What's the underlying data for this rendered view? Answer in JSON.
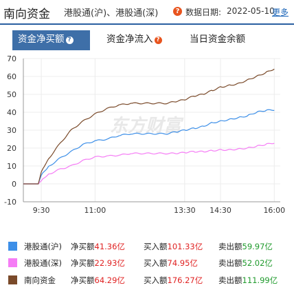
{
  "header": {
    "title": "南向资金",
    "markets": "港股通(沪)、港股通(深)",
    "date_label": "数据日期:",
    "date": "2022-05-10",
    "more": "更多",
    "help_icon": "?"
  },
  "tabs": [
    {
      "label": "资金净买额",
      "active": true
    },
    {
      "label": "资金净流入",
      "active": false
    },
    {
      "label": "当日资金余额",
      "active": false
    }
  ],
  "colors": {
    "accent": "#3e6fa8",
    "sh": "#3d8fe8",
    "sz": "#f57cf5",
    "total": "#7a4a2a"
  },
  "chart_data": {
    "type": "line",
    "x_ticks": [
      "9:30",
      "11:00",
      "13:30",
      "14:30",
      "16:00"
    ],
    "ylim": [
      -10,
      70
    ],
    "y_ticks": [
      -10,
      0,
      10,
      20,
      30,
      40,
      50,
      60,
      70
    ],
    "grid": true,
    "series": [
      {
        "name": "港股通(沪)",
        "points": [
          [
            "9:00",
            0
          ],
          [
            "9:25",
            0
          ],
          [
            "9:30",
            5
          ],
          [
            "9:40",
            9
          ],
          [
            "10:00",
            14
          ],
          [
            "10:20",
            18
          ],
          [
            "10:40",
            22
          ],
          [
            "11:00",
            24
          ],
          [
            "11:20",
            25
          ],
          [
            "11:40",
            27
          ],
          [
            "12:00",
            28
          ],
          [
            "13:00",
            28
          ],
          [
            "13:15",
            29
          ],
          [
            "13:30",
            30
          ],
          [
            "13:45",
            31
          ],
          [
            "14:00",
            32
          ],
          [
            "14:15",
            34
          ],
          [
            "14:30",
            35
          ],
          [
            "14:45",
            36
          ],
          [
            "15:00",
            37
          ],
          [
            "15:15",
            38
          ],
          [
            "15:30",
            40
          ],
          [
            "15:45",
            41
          ],
          [
            "16:00",
            41.36
          ]
        ]
      },
      {
        "name": "港股通(深)",
        "points": [
          [
            "9:00",
            0
          ],
          [
            "9:25",
            0
          ],
          [
            "9:30",
            2
          ],
          [
            "9:40",
            5
          ],
          [
            "10:00",
            8
          ],
          [
            "10:20",
            10
          ],
          [
            "10:40",
            13
          ],
          [
            "11:00",
            15
          ],
          [
            "11:20",
            15.5
          ],
          [
            "11:40",
            16
          ],
          [
            "12:00",
            17
          ],
          [
            "13:00",
            17
          ],
          [
            "13:15",
            17
          ],
          [
            "13:30",
            17.5
          ],
          [
            "13:45",
            18
          ],
          [
            "14:00",
            18
          ],
          [
            "14:15",
            18.5
          ],
          [
            "14:30",
            19
          ],
          [
            "14:45",
            19
          ],
          [
            "15:00",
            19.5
          ],
          [
            "15:15",
            20
          ],
          [
            "15:30",
            21
          ],
          [
            "15:45",
            22
          ],
          [
            "16:00",
            22.93
          ]
        ]
      },
      {
        "name": "南向资金",
        "points": [
          [
            "9:00",
            0
          ],
          [
            "9:25",
            0
          ],
          [
            "9:30",
            7
          ],
          [
            "9:40",
            13
          ],
          [
            "10:00",
            22
          ],
          [
            "10:20",
            30
          ],
          [
            "10:40",
            35
          ],
          [
            "11:00",
            39
          ],
          [
            "11:20",
            42
          ],
          [
            "11:40",
            44
          ],
          [
            "12:00",
            45
          ],
          [
            "13:00",
            45
          ],
          [
            "13:15",
            46
          ],
          [
            "13:30",
            47
          ],
          [
            "13:45",
            49
          ],
          [
            "14:00",
            50
          ],
          [
            "14:15",
            52
          ],
          [
            "14:30",
            54
          ],
          [
            "14:45",
            55
          ],
          [
            "15:00",
            56
          ],
          [
            "15:15",
            58
          ],
          [
            "15:30",
            60
          ],
          [
            "15:45",
            62
          ],
          [
            "16:00",
            64.29
          ]
        ]
      }
    ]
  },
  "legend": [
    {
      "name": "港股通(沪)",
      "net_label": "净买额",
      "net": "41.36亿",
      "buy_label": "买入额",
      "buy": "101.33亿",
      "sell_label": "卖出额",
      "sell": "59.97亿"
    },
    {
      "name": "港股通(深)",
      "net_label": "净买额",
      "net": "22.93亿",
      "buy_label": "买入额",
      "buy": "74.95亿",
      "sell_label": "卖出额",
      "sell": "52.02亿"
    },
    {
      "name": "南向资金",
      "net_label": "净买额",
      "net": "64.29亿",
      "buy_label": "买入额",
      "buy": "176.27亿",
      "sell_label": "卖出额",
      "sell": "111.99亿"
    }
  ],
  "watermark": "东方财富"
}
